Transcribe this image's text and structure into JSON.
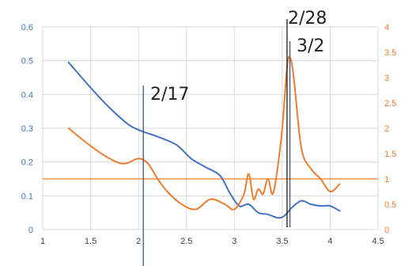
{
  "chart_data": {
    "type": "line",
    "title": "",
    "xlabel": "",
    "ylabel": "",
    "y2label": "",
    "xlim": [
      1,
      4.5
    ],
    "ylim": [
      0,
      0.6
    ],
    "y2lim": [
      0,
      4
    ],
    "grid": true,
    "legend": "none",
    "x_ticks": [
      "1",
      "1.5",
      "2",
      "2.5",
      "3",
      "3.5",
      "4",
      "4.5"
    ],
    "y_ticks": [
      "0",
      "0.1",
      "0.2",
      "0.3",
      "0.4",
      "0.5",
      "0.6"
    ],
    "y2_ticks": [
      "0",
      "0.5",
      "1",
      "1.5",
      "2",
      "2.5",
      "3",
      "3.5",
      "4"
    ],
    "series": [
      {
        "axis": "left",
        "color": "#4472c4",
        "x": [
          1.27,
          1.5,
          1.7,
          1.9,
          2.05,
          2.2,
          2.4,
          2.55,
          2.7,
          2.85,
          2.95,
          3.05,
          3.15,
          3.25,
          3.35,
          3.45,
          3.52,
          3.6,
          3.7,
          3.8,
          3.9,
          4.0,
          4.1
        ],
        "y": [
          0.495,
          0.42,
          0.36,
          0.31,
          0.29,
          0.275,
          0.25,
          0.21,
          0.185,
          0.16,
          0.11,
          0.07,
          0.075,
          0.05,
          0.045,
          0.035,
          0.04,
          0.065,
          0.085,
          0.075,
          0.07,
          0.07,
          0.055
        ]
      },
      {
        "axis": "right",
        "color": "#ed7d31",
        "x": [
          1.27,
          1.5,
          1.7,
          1.85,
          2.0,
          2.1,
          2.2,
          2.3,
          2.45,
          2.6,
          2.75,
          2.9,
          3.0,
          3.1,
          3.15,
          3.2,
          3.25,
          3.3,
          3.35,
          3.4,
          3.45,
          3.5,
          3.55,
          3.58,
          3.62,
          3.7,
          3.8,
          3.9,
          4.0,
          4.1
        ],
        "y": [
          2.0,
          1.65,
          1.4,
          1.3,
          1.4,
          1.3,
          1.0,
          0.75,
          0.5,
          0.4,
          0.6,
          0.5,
          0.4,
          0.7,
          1.1,
          0.6,
          0.8,
          0.7,
          1.0,
          0.7,
          1.2,
          2.0,
          3.2,
          3.4,
          3.0,
          1.6,
          1.2,
          1.0,
          0.75,
          0.9
        ]
      }
    ],
    "reference_lines": [
      {
        "axis": "right",
        "orientation": "horizontal",
        "value": 1,
        "color": "#ed7d31"
      }
    ],
    "annotations": [
      {
        "x": 2.05,
        "label": "2/17"
      },
      {
        "x": 3.55,
        "label": "2/28"
      },
      {
        "x": 3.58,
        "label": "3/2"
      }
    ]
  }
}
